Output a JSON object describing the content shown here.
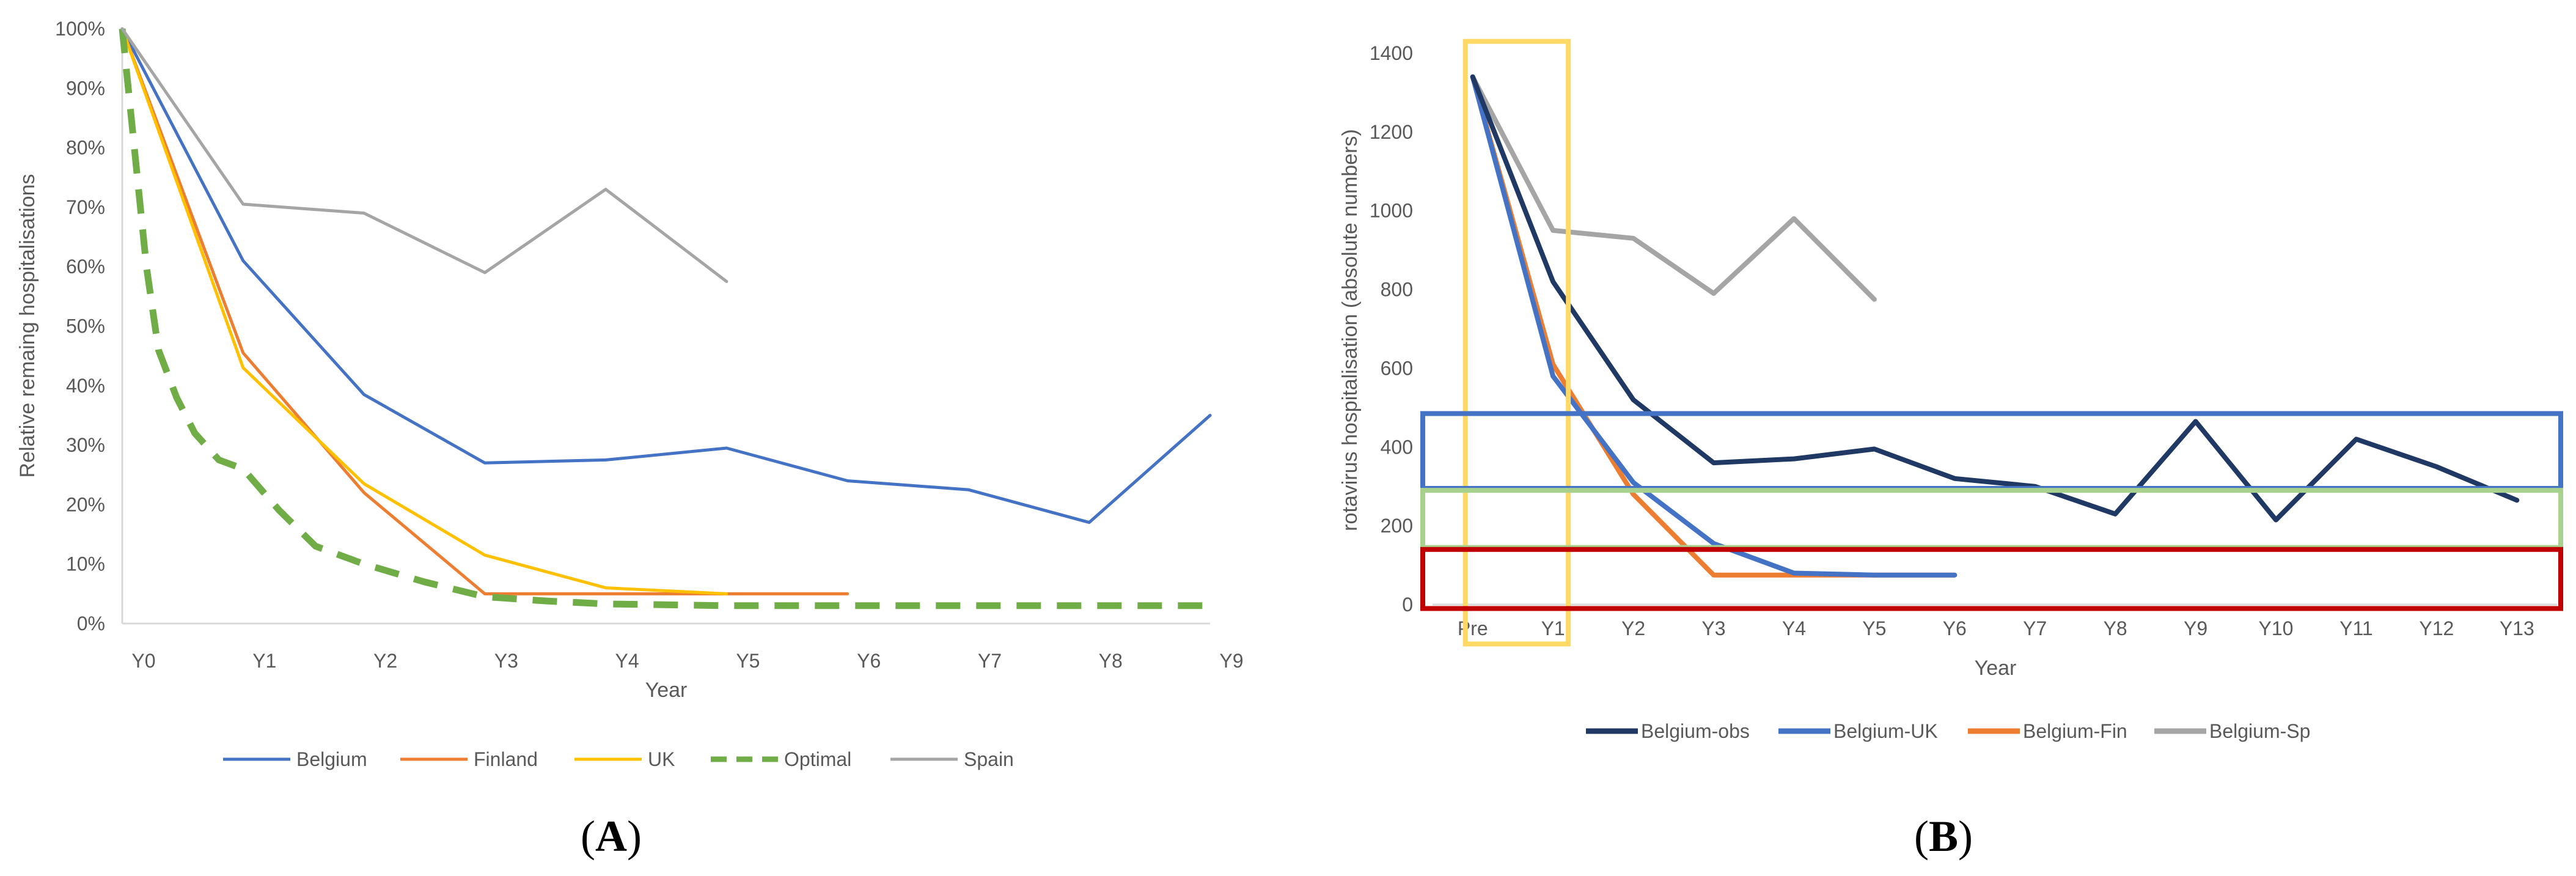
{
  "chart_data": [
    {
      "panel": "A",
      "type": "line",
      "title": "",
      "xlabel": "Year",
      "ylabel": "Relative remaing hospitalisations",
      "categories": [
        "Y0",
        "Y1",
        "Y2",
        "Y3",
        "Y4",
        "Y5",
        "Y6",
        "Y7",
        "Y8",
        "Y9"
      ],
      "ylim": [
        0,
        100
      ],
      "yticks": [
        "0%",
        "10%",
        "20%",
        "30%",
        "40%",
        "50%",
        "60%",
        "70%",
        "80%",
        "90%",
        "100%"
      ],
      "ytick_values": [
        0,
        10,
        20,
        30,
        40,
        50,
        60,
        70,
        80,
        90,
        100
      ],
      "legend_position": "bottom",
      "series": [
        {
          "name": "Belgium",
          "color": "#4472C4",
          "dashed": false,
          "values": [
            100,
            61,
            38.5,
            27,
            27.5,
            29.5,
            24,
            22.5,
            17,
            35
          ]
        },
        {
          "name": "Finland",
          "color": "#ED7D31",
          "dashed": false,
          "values": [
            100,
            45.5,
            22,
            5,
            5,
            5,
            5,
            null,
            null,
            null
          ]
        },
        {
          "name": "UK",
          "color": "#FFC000",
          "dashed": false,
          "values": [
            100,
            43,
            23.5,
            11.5,
            6,
            5,
            null,
            null,
            null,
            null
          ]
        },
        {
          "name": "Optimal",
          "color": "#70AD47",
          "dashed": true,
          "smooth_points": [
            [
              0,
              100
            ],
            [
              0.1,
              80
            ],
            [
              0.2,
              60
            ],
            [
              0.3,
              46
            ],
            [
              0.45,
              38
            ],
            [
              0.6,
              32
            ],
            [
              0.8,
              27.5
            ],
            [
              1,
              26
            ],
            [
              1.3,
              19
            ],
            [
              1.6,
              13
            ],
            [
              2,
              10
            ],
            [
              2.5,
              7
            ],
            [
              3,
              4.5
            ],
            [
              3.5,
              3.8
            ],
            [
              4,
              3.3
            ],
            [
              5,
              3
            ],
            [
              6,
              3
            ],
            [
              7,
              3
            ],
            [
              8,
              3
            ],
            [
              9,
              3
            ]
          ]
        },
        {
          "name": "Spain",
          "color": "#A5A5A5",
          "dashed": false,
          "values": [
            100,
            70.5,
            69,
            59,
            73,
            57.5,
            null,
            null,
            null,
            null
          ]
        }
      ],
      "panel_label": "A"
    },
    {
      "panel": "B",
      "type": "line",
      "title": "",
      "xlabel": "Year",
      "ylabel": "rotavirus hospitalisation (absolute numbers)",
      "categories": [
        "Pre",
        "Y1",
        "Y2",
        "Y3",
        "Y4",
        "Y5",
        "Y6",
        "Y7",
        "Y8",
        "Y9",
        "Y10",
        "Y11",
        "Y12",
        "Y13"
      ],
      "ylim": [
        0,
        1400
      ],
      "yticks": [
        "0",
        "200",
        "400",
        "600",
        "800",
        "1000",
        "1200",
        "1400"
      ],
      "ytick_values": [
        0,
        200,
        400,
        600,
        800,
        1000,
        1200,
        1400
      ],
      "legend_position": "bottom",
      "series": [
        {
          "name": "Belgium-obs",
          "color": "#1F3864",
          "values": [
            1340,
            820,
            520,
            360,
            370,
            395,
            320,
            300,
            230,
            465,
            215,
            420,
            350,
            265
          ]
        },
        {
          "name": "Belgium-UK",
          "color": "#4472C4",
          "values": [
            1340,
            580,
            310,
            155,
            80,
            75,
            75,
            null,
            null,
            null,
            null,
            null,
            null,
            null
          ]
        },
        {
          "name": "Belgium-Fin",
          "color": "#ED7D31",
          "values": [
            1340,
            610,
            280,
            75,
            75,
            75,
            75,
            null,
            null,
            null,
            null,
            null,
            null,
            null
          ]
        },
        {
          "name": "Belgium-Sp",
          "color": "#A5A5A5",
          "values": [
            1340,
            950,
            930,
            790,
            980,
            775,
            null,
            null,
            null,
            null,
            null,
            null,
            null,
            null
          ]
        }
      ],
      "highlight_boxes": [
        {
          "label": "vertical band Pre–Y1",
          "color": "#FFD966",
          "x_from": "Pre",
          "x_to": "Y1",
          "y_from": -100,
          "y_to": 1430
        },
        {
          "label": "blue band",
          "color": "#4472C4",
          "y_from": 295,
          "y_to": 485
        },
        {
          "label": "green band",
          "color": "#A9D18E",
          "y_from": 145,
          "y_to": 290
        },
        {
          "label": "red band",
          "color": "#C00000",
          "y_from": -10,
          "y_to": 140
        }
      ],
      "panel_label": "B"
    }
  ]
}
